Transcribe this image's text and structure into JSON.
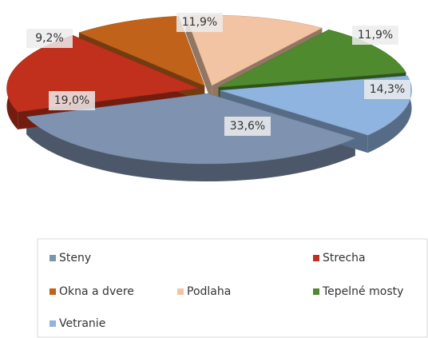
{
  "chart_data": {
    "type": "pie",
    "categories": [
      "Steny",
      "Strecha",
      "Okna a dvere",
      "Podlaha",
      "Tepelné mosty",
      "Vetranie"
    ],
    "values": [
      33.6,
      19.0,
      9.2,
      11.9,
      11.9,
      14.3
    ],
    "value_labels": [
      "33,6%",
      "19,0%",
      "9,2%",
      "11,9%",
      "11,9%",
      "14,3%"
    ],
    "colors": [
      "#7f93b0",
      "#c0301c",
      "#c0621a",
      "#f2c4a4",
      "#4f8a2e",
      "#8fb4e0"
    ],
    "legend": "bottom"
  }
}
